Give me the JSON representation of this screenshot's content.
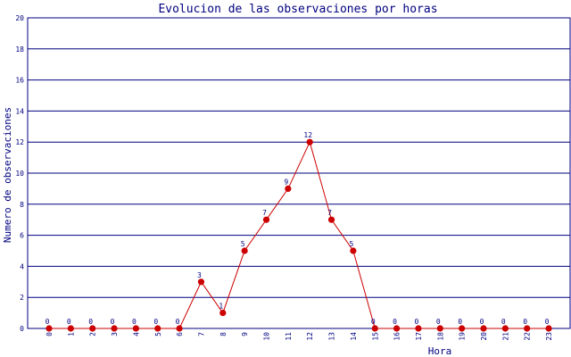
{
  "chart_data": {
    "type": "line",
    "title": "Evolucion de las observaciones por horas",
    "xlabel": "Hora",
    "ylabel": "Numero de observaciones",
    "categories": [
      "0",
      "1",
      "2",
      "3",
      "4",
      "5",
      "6",
      "7",
      "8",
      "9",
      "10",
      "11",
      "12",
      "13",
      "14",
      "15",
      "16",
      "17",
      "18",
      "19",
      "20",
      "21",
      "22",
      "23"
    ],
    "values": [
      0,
      0,
      0,
      0,
      0,
      0,
      0,
      3,
      1,
      5,
      7,
      9,
      12,
      7,
      5,
      0,
      0,
      0,
      0,
      0,
      0,
      0,
      0,
      0
    ],
    "ylim": [
      0,
      20
    ],
    "yticks": [
      "0",
      "2",
      "4",
      "6",
      "8",
      "10",
      "12",
      "14",
      "16",
      "18",
      "20"
    ],
    "grid": true,
    "colors": {
      "line": "#cc0000",
      "marker": "#cc0000",
      "grid": "#000080",
      "text": "#000080"
    }
  }
}
